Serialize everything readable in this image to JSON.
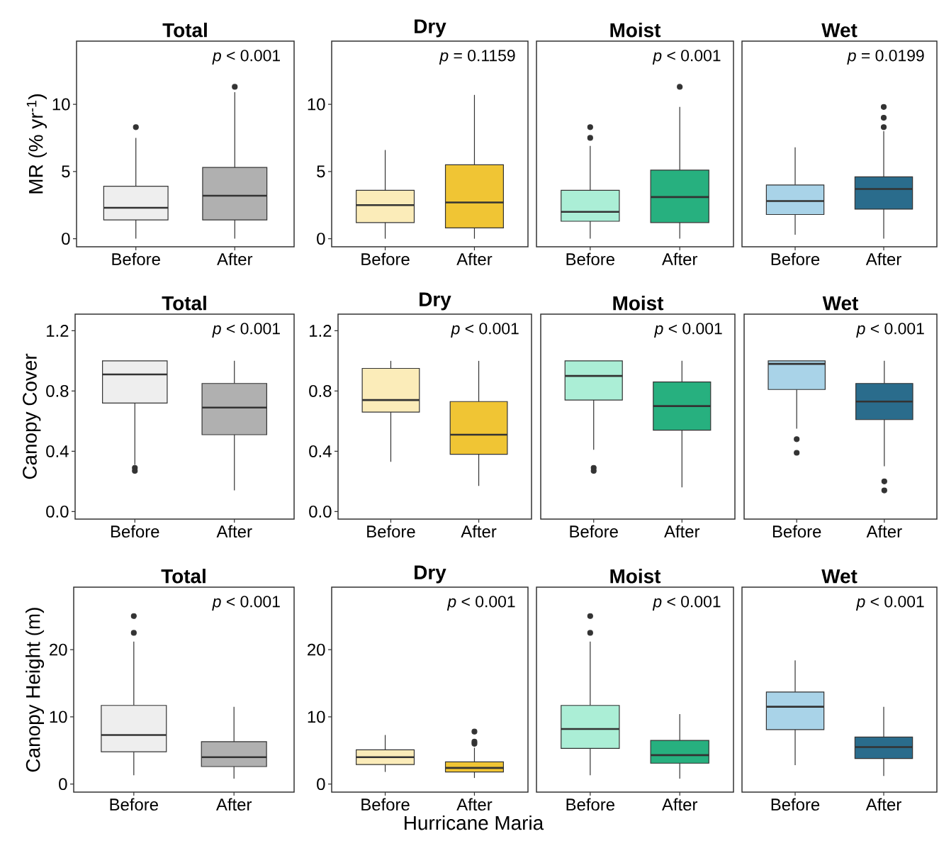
{
  "chart_data": [
    {
      "type": "box",
      "title": "Total",
      "ylabel": "MR (% yr$^{-1}$)",
      "categories": [
        "Before",
        "After"
      ],
      "colors": [
        "#eeeeee",
        "#b0b0b0"
      ],
      "ylim": [
        -0.6,
        14.7
      ],
      "yticks": [
        0,
        5,
        10
      ],
      "annotations": [
        "*p* < 0.001"
      ],
      "boxes": [
        {
          "low": 0,
          "q1": 1.4,
          "median": 2.3,
          "q3": 3.9,
          "high": 7.5,
          "outliers": [
            8.3
          ]
        },
        {
          "low": 0,
          "q1": 1.4,
          "median": 3.2,
          "q3": 5.3,
          "high": 10.9,
          "outliers": [
            11.3
          ]
        }
      ]
    },
    {
      "type": "box",
      "title": "Dry",
      "categories": [
        "Before",
        "After"
      ],
      "colors": [
        "#fbecb9",
        "#f0c534"
      ],
      "ylim": [
        -0.6,
        14.7
      ],
      "yticks": [
        0,
        5,
        10
      ],
      "annotations": [
        "*p* = 0.1159"
      ],
      "boxes": [
        {
          "low": 0,
          "q1": 1.2,
          "median": 2.5,
          "q3": 3.6,
          "high": 6.6
        },
        {
          "low": 0,
          "q1": 0.8,
          "median": 2.7,
          "q3": 5.5,
          "high": 10.7
        }
      ]
    },
    {
      "type": "box",
      "title": "Moist",
      "categories": [
        "Before",
        "After"
      ],
      "colors": [
        "#abeed6",
        "#27b07f"
      ],
      "ylim": [
        -0.6,
        14.7
      ],
      "tick_labels": "x",
      "annotations": [
        "*p* < 0.001"
      ],
      "boxes": [
        {
          "low": 0,
          "q1": 1.3,
          "median": 2.0,
          "q3": 3.6,
          "high": 6.9,
          "outliers": [
            7.5,
            8.3
          ]
        },
        {
          "low": 0,
          "q1": 1.2,
          "median": 3.1,
          "q3": 5.1,
          "high": 9.8,
          "outliers": [
            11.3
          ]
        }
      ]
    },
    {
      "type": "box",
      "title": "Wet",
      "categories": [
        "Before",
        "After"
      ],
      "colors": [
        "#a9d3e8",
        "#2a6c8c"
      ],
      "ylim": [
        -0.6,
        14.7
      ],
      "tick_labels": "x",
      "annotations": [
        "*p* = 0.0199"
      ],
      "boxes": [
        {
          "low": 0.3,
          "q1": 1.8,
          "median": 2.8,
          "q3": 4.0,
          "high": 6.8
        },
        {
          "low": 0,
          "q1": 2.2,
          "median": 3.7,
          "q3": 4.6,
          "high": 8.0,
          "outliers": [
            8.3,
            9.0,
            9.8
          ]
        }
      ]
    },
    {
      "type": "box",
      "title": "Total",
      "ylabel": "Canopy Cover",
      "categories": [
        "Before",
        "After"
      ],
      "colors": [
        "#eeeeee",
        "#b0b0b0"
      ],
      "ylim": [
        -0.05,
        1.31
      ],
      "yticks": [
        {
          "value": 0,
          "label": "0.0"
        },
        0.4,
        0.8,
        1.2
      ],
      "annotations": [
        "*p* < 0.001"
      ],
      "boxes": [
        {
          "low": 0.31,
          "q1": 0.72,
          "median": 0.91,
          "q3": 1.0,
          "high": 1.0,
          "outliers": [
            0.29,
            0.27
          ]
        },
        {
          "low": 0.14,
          "q1": 0.51,
          "median": 0.69,
          "q3": 0.85,
          "high": 1.0
        }
      ]
    },
    {
      "type": "box",
      "title": "Dry",
      "categories": [
        "Before",
        "After"
      ],
      "colors": [
        "#fbecb9",
        "#f0c534"
      ],
      "ylim": [
        -0.05,
        1.31
      ],
      "yticks": [
        {
          "value": 0,
          "label": "0.0"
        },
        0.4,
        0.8,
        1.2
      ],
      "annotations": [
        "*p* < 0.001"
      ],
      "boxes": [
        {
          "low": 0.33,
          "q1": 0.66,
          "median": 0.74,
          "q3": 0.95,
          "high": 1.0
        },
        {
          "low": 0.17,
          "q1": 0.38,
          "median": 0.51,
          "q3": 0.73,
          "high": 1.0
        }
      ]
    },
    {
      "type": "box",
      "title": "Moist",
      "categories": [
        "Before",
        "After"
      ],
      "colors": [
        "#abeed6",
        "#27b07f"
      ],
      "ylim": [
        -0.05,
        1.31
      ],
      "tick_labels": "x",
      "annotations": [
        "*p* < 0.001"
      ],
      "boxes": [
        {
          "low": 0.41,
          "q1": 0.74,
          "median": 0.9,
          "q3": 1.0,
          "high": 1.0,
          "outliers": [
            0.29,
            0.27
          ]
        },
        {
          "low": 0.16,
          "q1": 0.54,
          "median": 0.7,
          "q3": 0.86,
          "high": 1.0
        }
      ]
    },
    {
      "type": "box",
      "title": "Wet",
      "categories": [
        "Before",
        "After"
      ],
      "colors": [
        "#a9d3e8",
        "#2a6c8c"
      ],
      "ylim": [
        -0.05,
        1.31
      ],
      "tick_labels": "x",
      "annotations": [
        "*p* < 0.001"
      ],
      "boxes": [
        {
          "low": 0.55,
          "q1": 0.81,
          "median": 0.98,
          "q3": 1.0,
          "high": 1.0,
          "outliers": [
            0.48,
            0.39
          ]
        },
        {
          "low": 0.3,
          "q1": 0.61,
          "median": 0.73,
          "q3": 0.85,
          "high": 1.0,
          "outliers": [
            0.2,
            0.14
          ]
        }
      ]
    },
    {
      "type": "box",
      "title": "Total",
      "ylabel": "Canopy Height (m)",
      "categories": [
        "Before",
        "After"
      ],
      "colors": [
        "#eeeeee",
        "#b0b0b0"
      ],
      "ylim": [
        -1.2,
        29.3
      ],
      "yticks": [
        0,
        10,
        20
      ],
      "annotations": [
        "*p* < 0.001"
      ],
      "boxes": [
        {
          "low": 1.3,
          "q1": 4.8,
          "median": 7.3,
          "q3": 11.7,
          "high": 21.2,
          "outliers": [
            22.5,
            25.0
          ]
        },
        {
          "low": 0.8,
          "q1": 2.6,
          "median": 4.0,
          "q3": 6.3,
          "high": 11.5
        }
      ]
    },
    {
      "type": "box",
      "title": "Dry",
      "xlabel": "Hurricane Maria",
      "categories": [
        "Before",
        "After"
      ],
      "colors": [
        "#fbecb9",
        "#f0c534"
      ],
      "ylim": [
        -1.2,
        29.3
      ],
      "yticks": [
        0,
        10,
        20
      ],
      "annotations": [
        "*p* < 0.001"
      ],
      "boxes": [
        {
          "low": 1.8,
          "q1": 2.9,
          "median": 4.0,
          "q3": 5.1,
          "high": 7.3
        },
        {
          "low": 0.9,
          "q1": 1.8,
          "median": 2.4,
          "q3": 3.3,
          "high": 5.4,
          "outliers": [
            6.0,
            6.3,
            7.8
          ]
        }
      ]
    },
    {
      "type": "box",
      "title": "Moist",
      "categories": [
        "Before",
        "After"
      ],
      "colors": [
        "#abeed6",
        "#27b07f"
      ],
      "ylim": [
        -1.2,
        29.3
      ],
      "tick_labels": "x",
      "annotations": [
        "*p* < 0.001"
      ],
      "boxes": [
        {
          "low": 1.3,
          "q1": 5.3,
          "median": 8.2,
          "q3": 11.7,
          "high": 21.2,
          "outliers": [
            22.5,
            25.0
          ]
        },
        {
          "low": 0.8,
          "q1": 3.1,
          "median": 4.3,
          "q3": 6.5,
          "high": 10.4
        }
      ]
    },
    {
      "type": "box",
      "title": "Wet",
      "categories": [
        "Before",
        "After"
      ],
      "colors": [
        "#a9d3e8",
        "#2a6c8c"
      ],
      "ylim": [
        -1.2,
        29.3
      ],
      "tick_labels": "x",
      "annotations": [
        "*p* < 0.001"
      ],
      "boxes": [
        {
          "low": 2.8,
          "q1": 8.1,
          "median": 11.5,
          "q3": 13.7,
          "high": 18.4
        },
        {
          "low": 1.2,
          "q1": 3.8,
          "median": 5.5,
          "q3": 7.0,
          "high": 11.5
        }
      ]
    }
  ]
}
